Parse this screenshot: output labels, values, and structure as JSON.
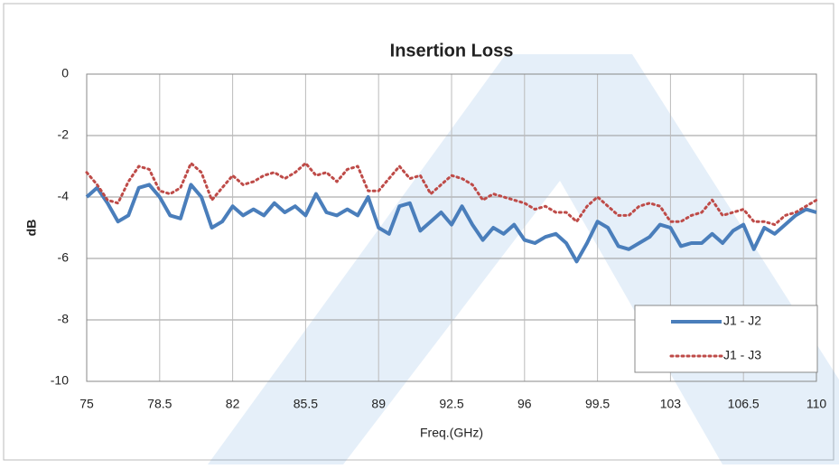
{
  "chart_data": {
    "type": "line",
    "title": "Insertion Loss",
    "x_label": "Freq.(GHz)",
    "y_label": "dB",
    "x": [
      75,
      75.5,
      76,
      76.5,
      77,
      77.5,
      78,
      78.5,
      79,
      79.5,
      80,
      80.5,
      81,
      81.5,
      82,
      82.5,
      83,
      83.5,
      84,
      84.5,
      85,
      85.5,
      86,
      86.5,
      87,
      87.5,
      88,
      88.5,
      89,
      89.5,
      90,
      90.5,
      91,
      91.5,
      92,
      92.5,
      93,
      93.5,
      94,
      94.5,
      95,
      95.5,
      96,
      96.5,
      97,
      97.5,
      98,
      98.5,
      99,
      99.5,
      100,
      100.5,
      101,
      101.5,
      102,
      102.5,
      103,
      103.5,
      104,
      104.5,
      105,
      105.5,
      106,
      106.5,
      107,
      107.5,
      108,
      108.5,
      109,
      109.5,
      110
    ],
    "series": [
      {
        "name": "J1 - J2",
        "color": "#4a7ebb",
        "style": "solid",
        "values": [
          -4.0,
          -3.7,
          -4.2,
          -4.8,
          -4.6,
          -3.7,
          -3.6,
          -4.0,
          -4.6,
          -4.7,
          -3.6,
          -4.0,
          -5.0,
          -4.8,
          -4.3,
          -4.6,
          -4.4,
          -4.6,
          -4.2,
          -4.5,
          -4.3,
          -4.6,
          -3.9,
          -4.5,
          -4.6,
          -4.4,
          -4.6,
          -4.0,
          -5.0,
          -5.2,
          -4.3,
          -4.2,
          -5.1,
          -4.8,
          -4.5,
          -4.9,
          -4.3,
          -4.9,
          -5.4,
          -5.0,
          -5.2,
          -4.9,
          -5.4,
          -5.5,
          -5.3,
          -5.2,
          -5.5,
          -6.1,
          -5.5,
          -4.8,
          -5.0,
          -5.6,
          -5.7,
          -5.5,
          -5.3,
          -4.9,
          -5.0,
          -5.6,
          -5.5,
          -5.5,
          -5.2,
          -5.5,
          -5.1,
          -4.9,
          -5.7,
          -5.0,
          -5.2,
          -4.9,
          -4.6,
          -4.4,
          -4.5
        ]
      },
      {
        "name": "J1 - J3",
        "color": "#be4b48",
        "style": "dotted",
        "values": [
          -3.2,
          -3.6,
          -4.1,
          -4.2,
          -3.5,
          -3.0,
          -3.1,
          -3.8,
          -3.9,
          -3.7,
          -2.9,
          -3.2,
          -4.1,
          -3.7,
          -3.3,
          -3.6,
          -3.5,
          -3.3,
          -3.2,
          -3.4,
          -3.2,
          -2.9,
          -3.3,
          -3.2,
          -3.5,
          -3.1,
          -3.0,
          -3.8,
          -3.8,
          -3.4,
          -3.0,
          -3.4,
          -3.3,
          -3.9,
          -3.6,
          -3.3,
          -3.4,
          -3.6,
          -4.1,
          -3.9,
          -4.0,
          -4.1,
          -4.2,
          -4.4,
          -4.3,
          -4.5,
          -4.5,
          -4.8,
          -4.3,
          -4.0,
          -4.3,
          -4.6,
          -4.6,
          -4.3,
          -4.2,
          -4.3,
          -4.8,
          -4.8,
          -4.6,
          -4.5,
          -4.1,
          -4.6,
          -4.5,
          -4.4,
          -4.8,
          -4.8,
          -4.9,
          -4.6,
          -4.5,
          -4.3,
          -4.1
        ]
      }
    ],
    "xlim": [
      75,
      110
    ],
    "xticks": [
      75,
      78.5,
      82,
      85.5,
      89,
      92.5,
      96,
      99.5,
      103,
      106.5,
      110
    ],
    "ylim": [
      -10,
      0
    ],
    "yticks": [
      0,
      -2,
      -4,
      -6,
      -8,
      -10
    ],
    "grid": true,
    "legend": "lower right"
  }
}
